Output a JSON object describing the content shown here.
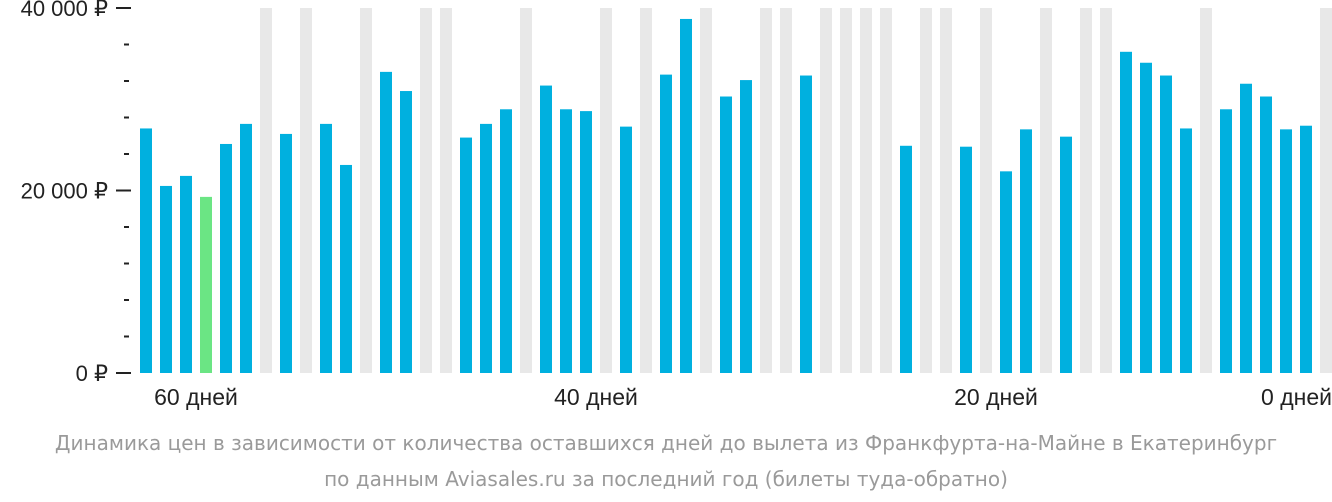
{
  "chart_data": {
    "type": "bar",
    "x_axis_label_suffix": "дней",
    "x": [
      60,
      59,
      58,
      57,
      56,
      55,
      54,
      53,
      52,
      51,
      50,
      49,
      48,
      47,
      46,
      45,
      44,
      43,
      42,
      41,
      40,
      39,
      38,
      37,
      36,
      35,
      34,
      33,
      32,
      31,
      30,
      29,
      28,
      27,
      26,
      25,
      24,
      23,
      22,
      21,
      20,
      19,
      18,
      17,
      16,
      15,
      14,
      13,
      12,
      11,
      10,
      9,
      8,
      7,
      6,
      5,
      4,
      3,
      2,
      1,
      0
    ],
    "values": [
      26800,
      20500,
      21600,
      19300,
      25100,
      27300,
      null,
      26200,
      null,
      27300,
      22800,
      null,
      33000,
      30900,
      null,
      null,
      25800,
      27300,
      28900,
      null,
      31500,
      28900,
      28700,
      null,
      27000,
      null,
      32700,
      38800,
      null,
      30300,
      32100,
      null,
      null,
      32600,
      null,
      null,
      null,
      null,
      24900,
      null,
      null,
      24800,
      null,
      22100,
      26700,
      null,
      25900,
      null,
      null,
      35200,
      34000,
      32600,
      26800,
      null,
      28900,
      31700,
      30300,
      26700,
      27100,
      null,
      null
    ],
    "highlight_index": 3,
    "ylim": [
      0,
      40000
    ],
    "yticks": [
      0,
      20000,
      40000
    ],
    "ytick_labels": [
      "0 ₽",
      "20 000 ₽",
      "40 000 ₽"
    ],
    "minor_ticks_per_major": 5,
    "xticks": [
      60,
      40,
      20,
      0
    ],
    "xtick_labels": [
      "60 дней",
      "40 дней",
      "20 дней",
      "0 дней"
    ],
    "colors": {
      "bar": "#00b0df",
      "highlight": "#6be584",
      "column_background": "#e8e8e8",
      "axis_tick": "#222222"
    }
  },
  "caption": {
    "line1": "Динамика цен в зависимости от количества оставшихся дней до вылета из Франкфурта-на-Майне в Екатеринбург",
    "line2": "по данным Aviasales.ru за последний год (билеты туда-обратно)"
  }
}
